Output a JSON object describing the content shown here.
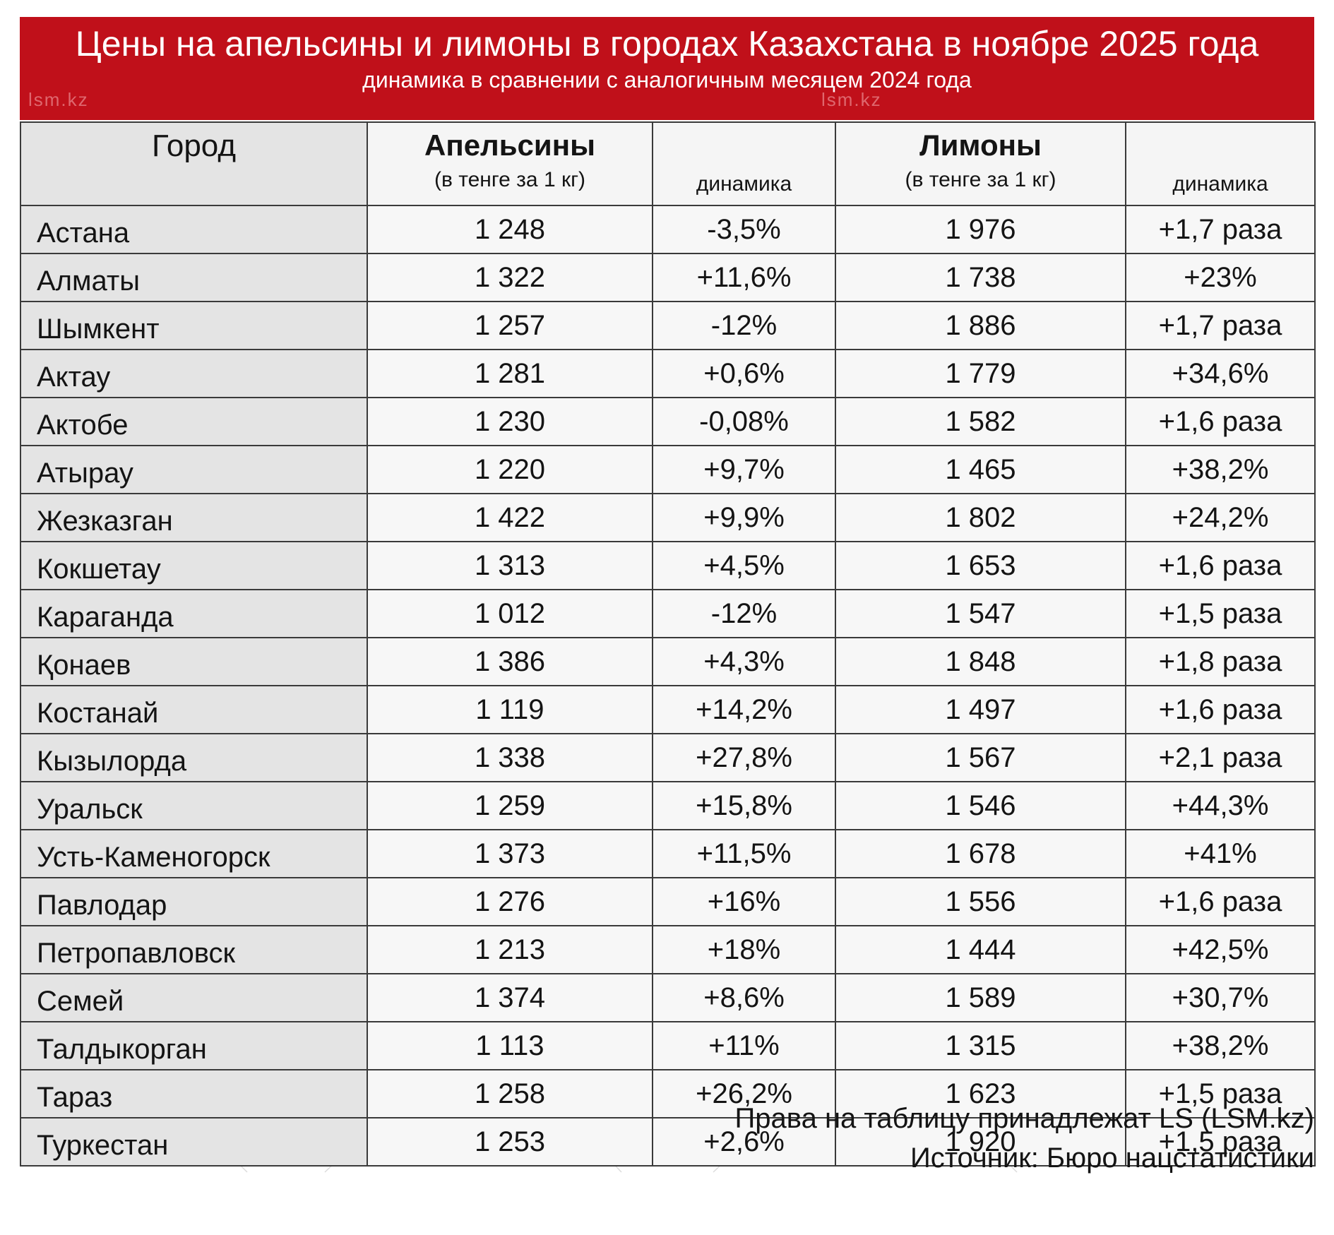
{
  "header": {
    "title": "Цены на апельсины и лимоны в городах Казахстана в ноябре 2025 года",
    "subtitle": "динамика в сравнении с аналогичным месяцем 2024 года"
  },
  "watermark": {
    "text": "lsm.kz",
    "logo": "LS"
  },
  "table": {
    "headers": {
      "city": "Город",
      "oranges": "Апельсины",
      "oranges_unit": "(в тенге за 1 кг)",
      "oranges_dynamics": "динамика",
      "lemons": "Лимоны",
      "lemons_unit": "(в тенге за 1 кг)",
      "lemons_dynamics": "динамика"
    },
    "rows": [
      {
        "city": "Астана",
        "orange_price": "1 248",
        "orange_change": "-3,5%",
        "lemon_price": "1 976",
        "lemon_change": "+1,7 раза"
      },
      {
        "city": "Алматы",
        "orange_price": "1 322",
        "orange_change": "+11,6%",
        "lemon_price": "1 738",
        "lemon_change": "+23%"
      },
      {
        "city": "Шымкент",
        "orange_price": "1 257",
        "orange_change": "-12%",
        "lemon_price": "1 886",
        "lemon_change": "+1,7 раза"
      },
      {
        "city": "Актау",
        "orange_price": "1 281",
        "orange_change": "+0,6%",
        "lemon_price": "1 779",
        "lemon_change": "+34,6%"
      },
      {
        "city": "Актобе",
        "orange_price": "1 230",
        "orange_change": "-0,08%",
        "lemon_price": "1 582",
        "lemon_change": "+1,6 раза"
      },
      {
        "city": "Атырау",
        "orange_price": "1 220",
        "orange_change": "+9,7%",
        "lemon_price": "1 465",
        "lemon_change": "+38,2%"
      },
      {
        "city": "Жезказган",
        "orange_price": "1 422",
        "orange_change": "+9,9%",
        "lemon_price": "1 802",
        "lemon_change": "+24,2%"
      },
      {
        "city": "Кокшетау",
        "orange_price": "1 313",
        "orange_change": "+4,5%",
        "lemon_price": "1 653",
        "lemon_change": "+1,6 раза"
      },
      {
        "city": "Караганда",
        "orange_price": "1 012",
        "orange_change": "-12%",
        "lemon_price": "1 547",
        "lemon_change": "+1,5 раза"
      },
      {
        "city": "Қонаев",
        "orange_price": "1 386",
        "orange_change": "+4,3%",
        "lemon_price": "1 848",
        "lemon_change": "+1,8 раза"
      },
      {
        "city": "Костанай",
        "orange_price": "1 119",
        "orange_change": "+14,2%",
        "lemon_price": "1 497",
        "lemon_change": "+1,6 раза"
      },
      {
        "city": "Кызылорда",
        "orange_price": "1 338",
        "orange_change": "+27,8%",
        "lemon_price": "1 567",
        "lemon_change": "+2,1 раза"
      },
      {
        "city": "Уральск",
        "orange_price": "1 259",
        "orange_change": "+15,8%",
        "lemon_price": "1 546",
        "lemon_change": "+44,3%"
      },
      {
        "city": "Усть-Каменогорск",
        "orange_price": "1 373",
        "orange_change": "+11,5%",
        "lemon_price": "1 678",
        "lemon_change": "+41%"
      },
      {
        "city": "Павлодар",
        "orange_price": "1 276",
        "orange_change": "+16%",
        "lemon_price": "1 556",
        "lemon_change": "+1,6 раза"
      },
      {
        "city": "Петропавловск",
        "orange_price": "1 213",
        "orange_change": "+18%",
        "lemon_price": "1 444",
        "lemon_change": "+42,5%"
      },
      {
        "city": "Семей",
        "orange_price": "1 374",
        "orange_change": "+8,6%",
        "lemon_price": "1 589",
        "lemon_change": "+30,7%"
      },
      {
        "city": "Талдыкорган",
        "orange_price": "1 113",
        "orange_change": "+11%",
        "lemon_price": "1 315",
        "lemon_change": "+38,2%"
      },
      {
        "city": "Тараз",
        "orange_price": "1 258",
        "orange_change": "+26,2%",
        "lemon_price": "1 623",
        "lemon_change": "+1,5 раза"
      },
      {
        "city": "Туркестан",
        "orange_price": "1 253",
        "orange_change": "+2,6%",
        "lemon_price": "1 920",
        "lemon_change": "+1,5 раза"
      }
    ]
  },
  "footer": {
    "rights": "Права на таблицу принадлежат LS (LSM.kz)",
    "source": "Источник: Бюро нацстатистики"
  },
  "colors": {
    "banner": "#c0101a",
    "city_column": "#e4e4e4",
    "cells": "#f7f7f7"
  }
}
